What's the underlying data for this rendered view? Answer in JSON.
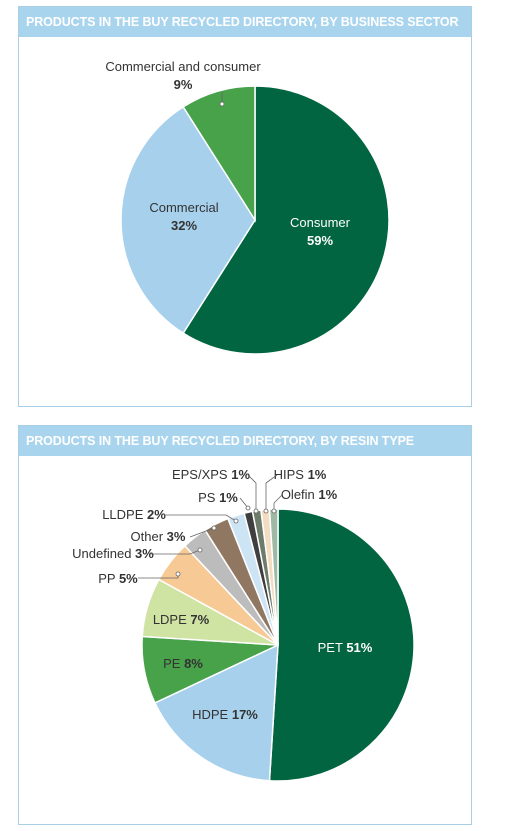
{
  "chart_data": [
    {
      "type": "pie",
      "title": "PRODUCTS IN THE BUY RECYCLED DIRECTORY, BY BUSINESS SECTOR",
      "slices": [
        {
          "label": "Consumer",
          "value": 59,
          "pct_text": "59%",
          "color": "#006540"
        },
        {
          "label": "Commercial",
          "value": 32,
          "pct_text": "32%",
          "color": "#a6d0ec"
        },
        {
          "label": "Commercial and consumer",
          "value": 9,
          "pct_text": "9%",
          "color": "#47a24a"
        }
      ]
    },
    {
      "type": "pie",
      "title": "PRODUCTS IN THE BUY RECYCLED DIRECTORY, BY RESIN TYPE",
      "slices": [
        {
          "label": "PET",
          "value": 51,
          "pct_text": "51%",
          "color": "#006540"
        },
        {
          "label": "HDPE",
          "value": 17,
          "pct_text": "17%",
          "color": "#a6d0ec"
        },
        {
          "label": "PE",
          "value": 8,
          "pct_text": "8%",
          "color": "#47a24a"
        },
        {
          "label": "LDPE",
          "value": 7,
          "pct_text": "7%",
          "color": "#cfe3a3"
        },
        {
          "label": "PP",
          "value": 5,
          "pct_text": "5%",
          "color": "#f7c995"
        },
        {
          "label": "Undefined",
          "value": 3,
          "pct_text": "3%",
          "color": "#bcbcbc"
        },
        {
          "label": "Other",
          "value": 3,
          "pct_text": "3%",
          "color": "#8f7762"
        },
        {
          "label": "LLDPE",
          "value": 2,
          "pct_text": "2%",
          "color": "#cde4f4"
        },
        {
          "label": "PS",
          "value": 1,
          "pct_text": "1%",
          "color": "#3f3f3f"
        },
        {
          "label": "EPS/XPS",
          "value": 1,
          "pct_text": "1%",
          "color": "#6d7c6a"
        },
        {
          "label": "HIPS",
          "value": 1,
          "pct_text": "1%",
          "color": "#f3dcc0"
        },
        {
          "label": "Olefin",
          "value": 1,
          "pct_text": "1%",
          "color": "#9fb9a7"
        }
      ]
    }
  ]
}
